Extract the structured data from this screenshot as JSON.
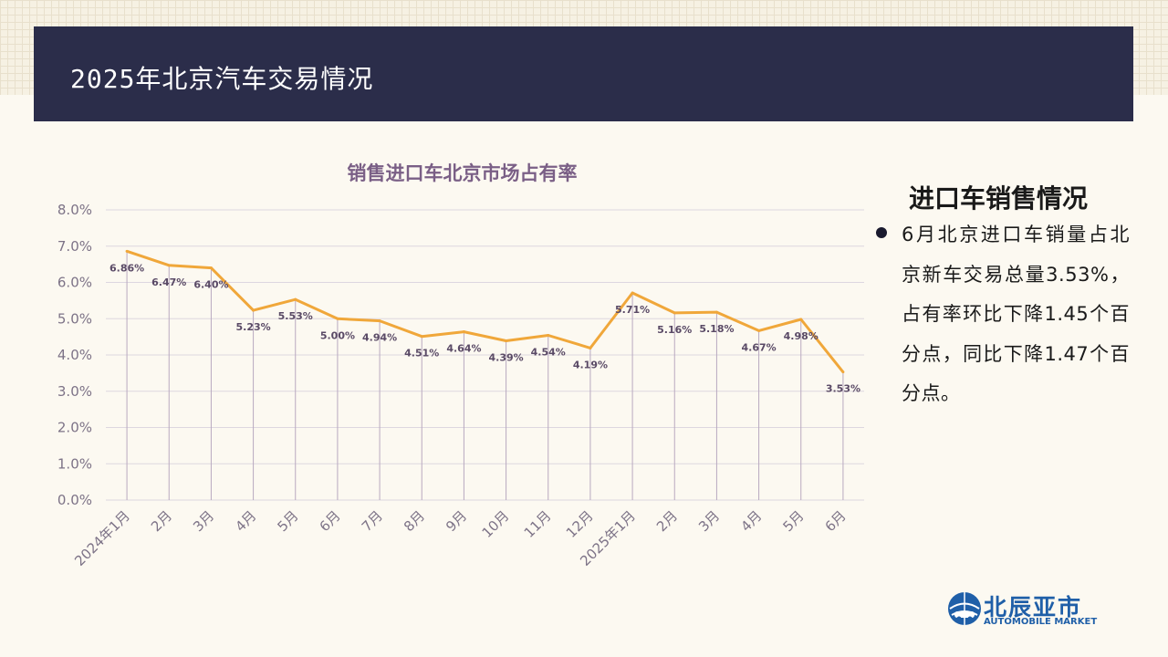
{
  "header": {
    "title": "2025年北京汽车交易情况"
  },
  "chart_data": {
    "type": "line",
    "title": "销售进口车北京市场占有率",
    "categories": [
      "2024年1月",
      "2月",
      "3月",
      "4月",
      "5月",
      "6月",
      "7月",
      "8月",
      "9月",
      "10月",
      "11月",
      "12月",
      "2025年1月",
      "2月",
      "3月",
      "4月",
      "5月",
      "6月"
    ],
    "series": [
      {
        "values": [
          6.86,
          6.47,
          6.4,
          5.23,
          5.53,
          5.0,
          4.94,
          4.51,
          4.64,
          4.39,
          4.54,
          4.19,
          5.71,
          5.16,
          5.18,
          4.67,
          4.98,
          3.53
        ]
      }
    ],
    "data_labels": [
      "6.86%",
      "6.47%",
      "6.40%",
      "5.23%",
      "5.53%",
      "5.00%",
      "4.94%",
      "4.51%",
      "4.64%",
      "4.39%",
      "4.54%",
      "4.19%",
      "5.71%",
      "5.16%",
      "5.18%",
      "4.67%",
      "4.98%",
      "3.53%"
    ],
    "y_ticks": [
      "0.0%",
      "1.0%",
      "2.0%",
      "3.0%",
      "4.0%",
      "5.0%",
      "6.0%",
      "7.0%",
      "8.0%"
    ],
    "ylim": [
      0,
      8
    ],
    "grid": true,
    "drop_lines": true,
    "line_color": "#f0a73a",
    "title_color": "#7a5f86"
  },
  "sidebar": {
    "title": "进口车销售情况",
    "body": "6月北京进口车销量占北京新车交易总量3.53%，占有率环比下降1.45个百分点，同比下降1.47个百分点。"
  },
  "logo": {
    "name_cn": "北辰亚市",
    "name_en": "AUTOMOBILE MARKET",
    "icon": "globe-car-logo-icon",
    "color": "#1f5fa8"
  }
}
